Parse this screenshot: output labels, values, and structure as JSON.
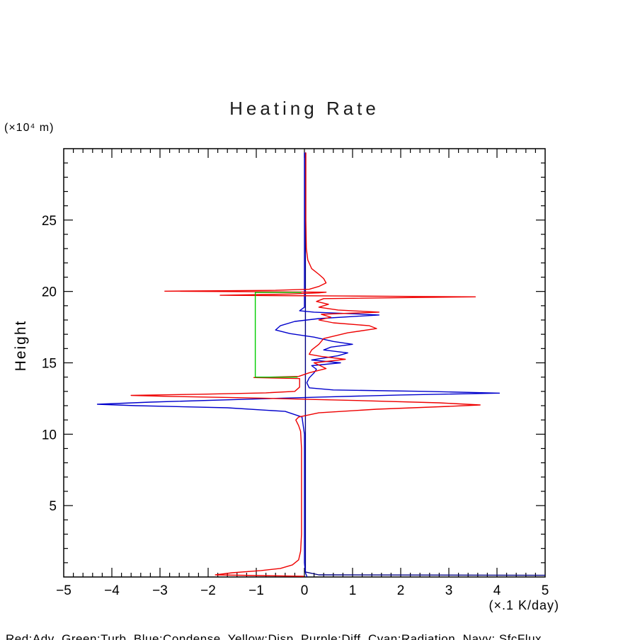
{
  "chart_data": {
    "type": "line",
    "title": "Heating Rate",
    "xlabel": "(×.1 K/day)",
    "ylabel": "Height",
    "y_unit_label": "(×10⁴ m)",
    "xlim": [
      -5,
      5
    ],
    "ylim": [
      0,
      30
    ],
    "xticks": [
      -5,
      -4,
      -3,
      -2,
      -1,
      0,
      1,
      2,
      3,
      4,
      5
    ],
    "yticks": [
      5,
      10,
      15,
      20,
      25
    ],
    "x_minor_step": 0.2,
    "y_minor_step": 1,
    "grid": false,
    "legend_position": "bottom",
    "legend_text": "Red:Adv  Green:Turb  Blue:Condense  Yellow:Disp  Purple:Diff  Cyan:Radiation  Navy: SfcFlux",
    "series": [
      {
        "name": "SfcFlux",
        "color": "#000080",
        "points": [
          [
            0.02,
            29.7
          ],
          [
            0.02,
            0.35
          ],
          [
            0.3,
            0.15
          ],
          [
            5.0,
            0.12
          ]
        ]
      },
      {
        "name": "Condense",
        "color": "#0000cc",
        "points": [
          [
            0.05,
            0.05
          ],
          [
            0.02,
            0.3
          ],
          [
            0.0,
            1.0
          ],
          [
            0.0,
            5.0
          ],
          [
            0.0,
            10.0
          ],
          [
            -0.05,
            11.2
          ],
          [
            -0.4,
            11.6
          ],
          [
            -1.6,
            11.85
          ],
          [
            -3.5,
            12.0
          ],
          [
            -4.3,
            12.1
          ],
          [
            -3.2,
            12.25
          ],
          [
            -1.2,
            12.45
          ],
          [
            0.3,
            12.6
          ],
          [
            2.0,
            12.75
          ],
          [
            4.05,
            12.88
          ],
          [
            2.5,
            13.0
          ],
          [
            0.6,
            13.1
          ],
          [
            0.1,
            13.25
          ],
          [
            0.05,
            13.6
          ],
          [
            0.1,
            13.95
          ],
          [
            0.2,
            14.3
          ],
          [
            0.25,
            14.55
          ],
          [
            0.15,
            14.8
          ],
          [
            0.75,
            15.0
          ],
          [
            0.15,
            15.2
          ],
          [
            0.7,
            15.5
          ],
          [
            0.9,
            15.7
          ],
          [
            0.4,
            15.9
          ],
          [
            0.55,
            16.1
          ],
          [
            1.0,
            16.3
          ],
          [
            0.6,
            16.5
          ],
          [
            0.2,
            16.8
          ],
          [
            -0.3,
            17.05
          ],
          [
            -0.6,
            17.3
          ],
          [
            -0.5,
            17.6
          ],
          [
            -0.2,
            17.9
          ],
          [
            0.3,
            18.1
          ],
          [
            1.55,
            18.35
          ],
          [
            0.9,
            18.45
          ],
          [
            0.2,
            18.55
          ],
          [
            -0.1,
            18.65
          ],
          [
            0.0,
            18.9
          ],
          [
            0.0,
            20.0
          ],
          [
            0.0,
            29.7
          ]
        ]
      },
      {
        "name": "Adv",
        "color": "#ee0000",
        "points": [
          [
            -0.02,
            0.05
          ],
          [
            -1.85,
            0.15
          ],
          [
            -1.5,
            0.3
          ],
          [
            -0.9,
            0.45
          ],
          [
            -0.5,
            0.6
          ],
          [
            -0.25,
            0.85
          ],
          [
            -0.12,
            1.2
          ],
          [
            -0.08,
            1.8
          ],
          [
            -0.06,
            3.0
          ],
          [
            -0.06,
            6.0
          ],
          [
            -0.06,
            9.0
          ],
          [
            -0.08,
            10.2
          ],
          [
            -0.12,
            10.6
          ],
          [
            -0.18,
            11.0
          ],
          [
            -0.12,
            11.2
          ],
          [
            0.3,
            11.5
          ],
          [
            1.5,
            11.75
          ],
          [
            3.0,
            11.95
          ],
          [
            3.65,
            12.05
          ],
          [
            2.8,
            12.2
          ],
          [
            1.2,
            12.35
          ],
          [
            0.0,
            12.45
          ],
          [
            -1.2,
            12.55
          ],
          [
            -2.8,
            12.65
          ],
          [
            -3.6,
            12.72
          ],
          [
            -2.2,
            12.8
          ],
          [
            -0.8,
            12.9
          ],
          [
            -0.2,
            13.0
          ],
          [
            -0.1,
            13.3
          ],
          [
            -0.1,
            13.9
          ],
          [
            -1.05,
            13.97
          ],
          [
            -0.12,
            14.05
          ],
          [
            0.1,
            14.3
          ],
          [
            0.45,
            14.6
          ],
          [
            0.3,
            14.85
          ],
          [
            0.2,
            15.0
          ],
          [
            0.85,
            15.25
          ],
          [
            0.35,
            15.45
          ],
          [
            0.1,
            15.6
          ],
          [
            0.15,
            15.9
          ],
          [
            0.3,
            16.3
          ],
          [
            0.4,
            16.7
          ],
          [
            0.9,
            17.1
          ],
          [
            1.5,
            17.4
          ],
          [
            1.35,
            17.6
          ],
          [
            0.6,
            17.8
          ],
          [
            0.3,
            18.0
          ],
          [
            0.55,
            18.2
          ],
          [
            0.35,
            18.4
          ],
          [
            1.55,
            18.55
          ],
          [
            0.7,
            18.7
          ],
          [
            0.3,
            18.9
          ],
          [
            0.5,
            19.1
          ],
          [
            0.25,
            19.3
          ],
          [
            0.4,
            19.5
          ],
          [
            3.55,
            19.62
          ],
          [
            0.8,
            19.68
          ],
          [
            -1.75,
            19.73
          ],
          [
            -0.3,
            19.82
          ],
          [
            0.3,
            19.9
          ],
          [
            0.45,
            19.95
          ],
          [
            -2.9,
            20.02
          ],
          [
            -0.6,
            20.08
          ],
          [
            0.1,
            20.15
          ],
          [
            0.3,
            20.35
          ],
          [
            0.45,
            20.6
          ],
          [
            0.4,
            20.9
          ],
          [
            0.3,
            21.2
          ],
          [
            0.15,
            21.6
          ],
          [
            0.07,
            22.2
          ],
          [
            0.04,
            23.0
          ],
          [
            0.03,
            25.0
          ],
          [
            0.03,
            29.7
          ]
        ]
      },
      {
        "name": "Turb",
        "color": "#00cc00",
        "points": [
          [
            -0.07,
            19.93
          ],
          [
            -1.02,
            19.93
          ],
          [
            -1.02,
            14.0
          ],
          [
            -0.15,
            14.0
          ]
        ]
      }
    ]
  }
}
